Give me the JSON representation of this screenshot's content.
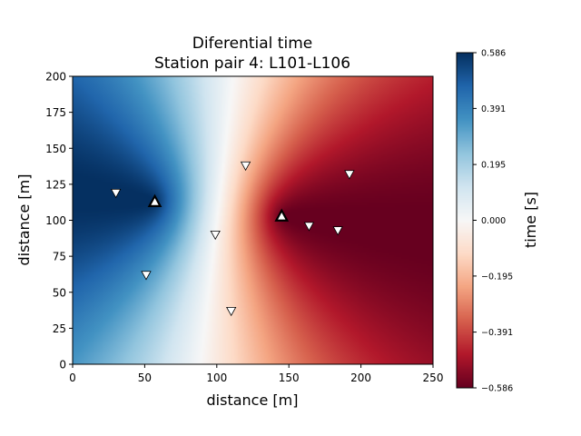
{
  "chart_data": {
    "type": "heatmap",
    "title_line1": "Diferential time",
    "title_line2": "Station pair 4: L101-L106",
    "xlabel": "distance [m]",
    "ylabel": "distance [m]",
    "xlim": [
      0,
      250
    ],
    "ylim": [
      0,
      200
    ],
    "xticks": [
      "0",
      "50",
      "100",
      "150",
      "200",
      "250"
    ],
    "xtick_values": [
      0,
      50,
      100,
      150,
      200,
      250
    ],
    "yticks": [
      "0",
      "25",
      "50",
      "75",
      "100",
      "125",
      "150",
      "175",
      "200"
    ],
    "ytick_values": [
      0,
      25,
      50,
      75,
      100,
      125,
      150,
      175,
      200
    ],
    "colormap": "RdBu",
    "colorbar": {
      "label": "time [s]",
      "range": [
        -0.586,
        0.586
      ],
      "ticks": [
        "0.586",
        "0.391",
        "0.195",
        "0.000",
        "−0.195",
        "−0.391",
        "−0.586"
      ],
      "tick_values": [
        0.586,
        0.391,
        0.195,
        0.0,
        -0.195,
        -0.391,
        -0.586
      ]
    },
    "station_pair": [
      {
        "name": "L101",
        "x": 57,
        "y": 113
      },
      {
        "name": "L106",
        "x": 145,
        "y": 103
      }
    ],
    "stations": [
      {
        "x": 30,
        "y": 119,
        "fill": "white"
      },
      {
        "x": 51,
        "y": 62,
        "fill": "white"
      },
      {
        "x": 99,
        "y": 90,
        "fill": "white"
      },
      {
        "x": 110,
        "y": 37,
        "fill": "white"
      },
      {
        "x": 120,
        "y": 138,
        "fill": "white"
      },
      {
        "x": 164,
        "y": 96,
        "fill": "white"
      },
      {
        "x": 184,
        "y": 93,
        "fill": "white"
      },
      {
        "x": 192,
        "y": 132,
        "fill": "white"
      }
    ],
    "colors": {
      "positive_max": "#053061",
      "zero": "#f7f7f7",
      "negative_max": "#67001f"
    }
  }
}
